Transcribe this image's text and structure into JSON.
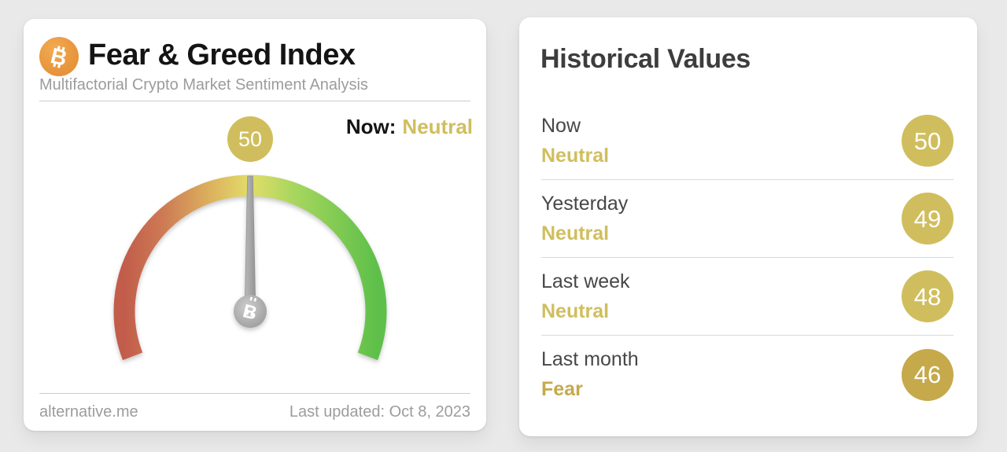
{
  "colors": {
    "neutral_gold": "#d0be5e",
    "fear_gold": "#c5a94b",
    "bitcoin_orange": "#e8963d",
    "gauge_red": "#c25d4b",
    "gauge_yellow": "#e2dd69",
    "gauge_green": "#5ec04a"
  },
  "gauge_card": {
    "title": "Fear & Greed Index",
    "subtitle": "Multifactorial Crypto Market Sentiment Analysis",
    "now_label": "Now:",
    "now_sentiment": "Neutral",
    "value": "50",
    "footer": {
      "source": "alternative.me",
      "last_updated": "Last updated: Oct 8, 2023"
    }
  },
  "history_card": {
    "title": "Historical Values",
    "rows": [
      {
        "label": "Now",
        "sentiment": "Neutral",
        "value": "50",
        "tone": "tone-neutral"
      },
      {
        "label": "Yesterday",
        "sentiment": "Neutral",
        "value": "49",
        "tone": "tone-neutral"
      },
      {
        "label": "Last week",
        "sentiment": "Neutral",
        "value": "48",
        "tone": "tone-neutral"
      },
      {
        "label": "Last month",
        "sentiment": "Fear",
        "value": "46",
        "tone": "tone-fear"
      }
    ]
  },
  "chart_data": {
    "type": "gauge",
    "title": "Fear & Greed Index",
    "value": 50,
    "range": [
      0,
      100
    ],
    "classification": "Neutral",
    "scale_colors": [
      "red (extreme fear)",
      "orange",
      "yellow (neutral)",
      "light green",
      "green (extreme greed)"
    ],
    "historical": [
      {
        "period": "Now",
        "classification": "Neutral",
        "value": 50
      },
      {
        "period": "Yesterday",
        "classification": "Neutral",
        "value": 49
      },
      {
        "period": "Last week",
        "classification": "Neutral",
        "value": 48
      },
      {
        "period": "Last month",
        "classification": "Fear",
        "value": 46
      }
    ]
  }
}
